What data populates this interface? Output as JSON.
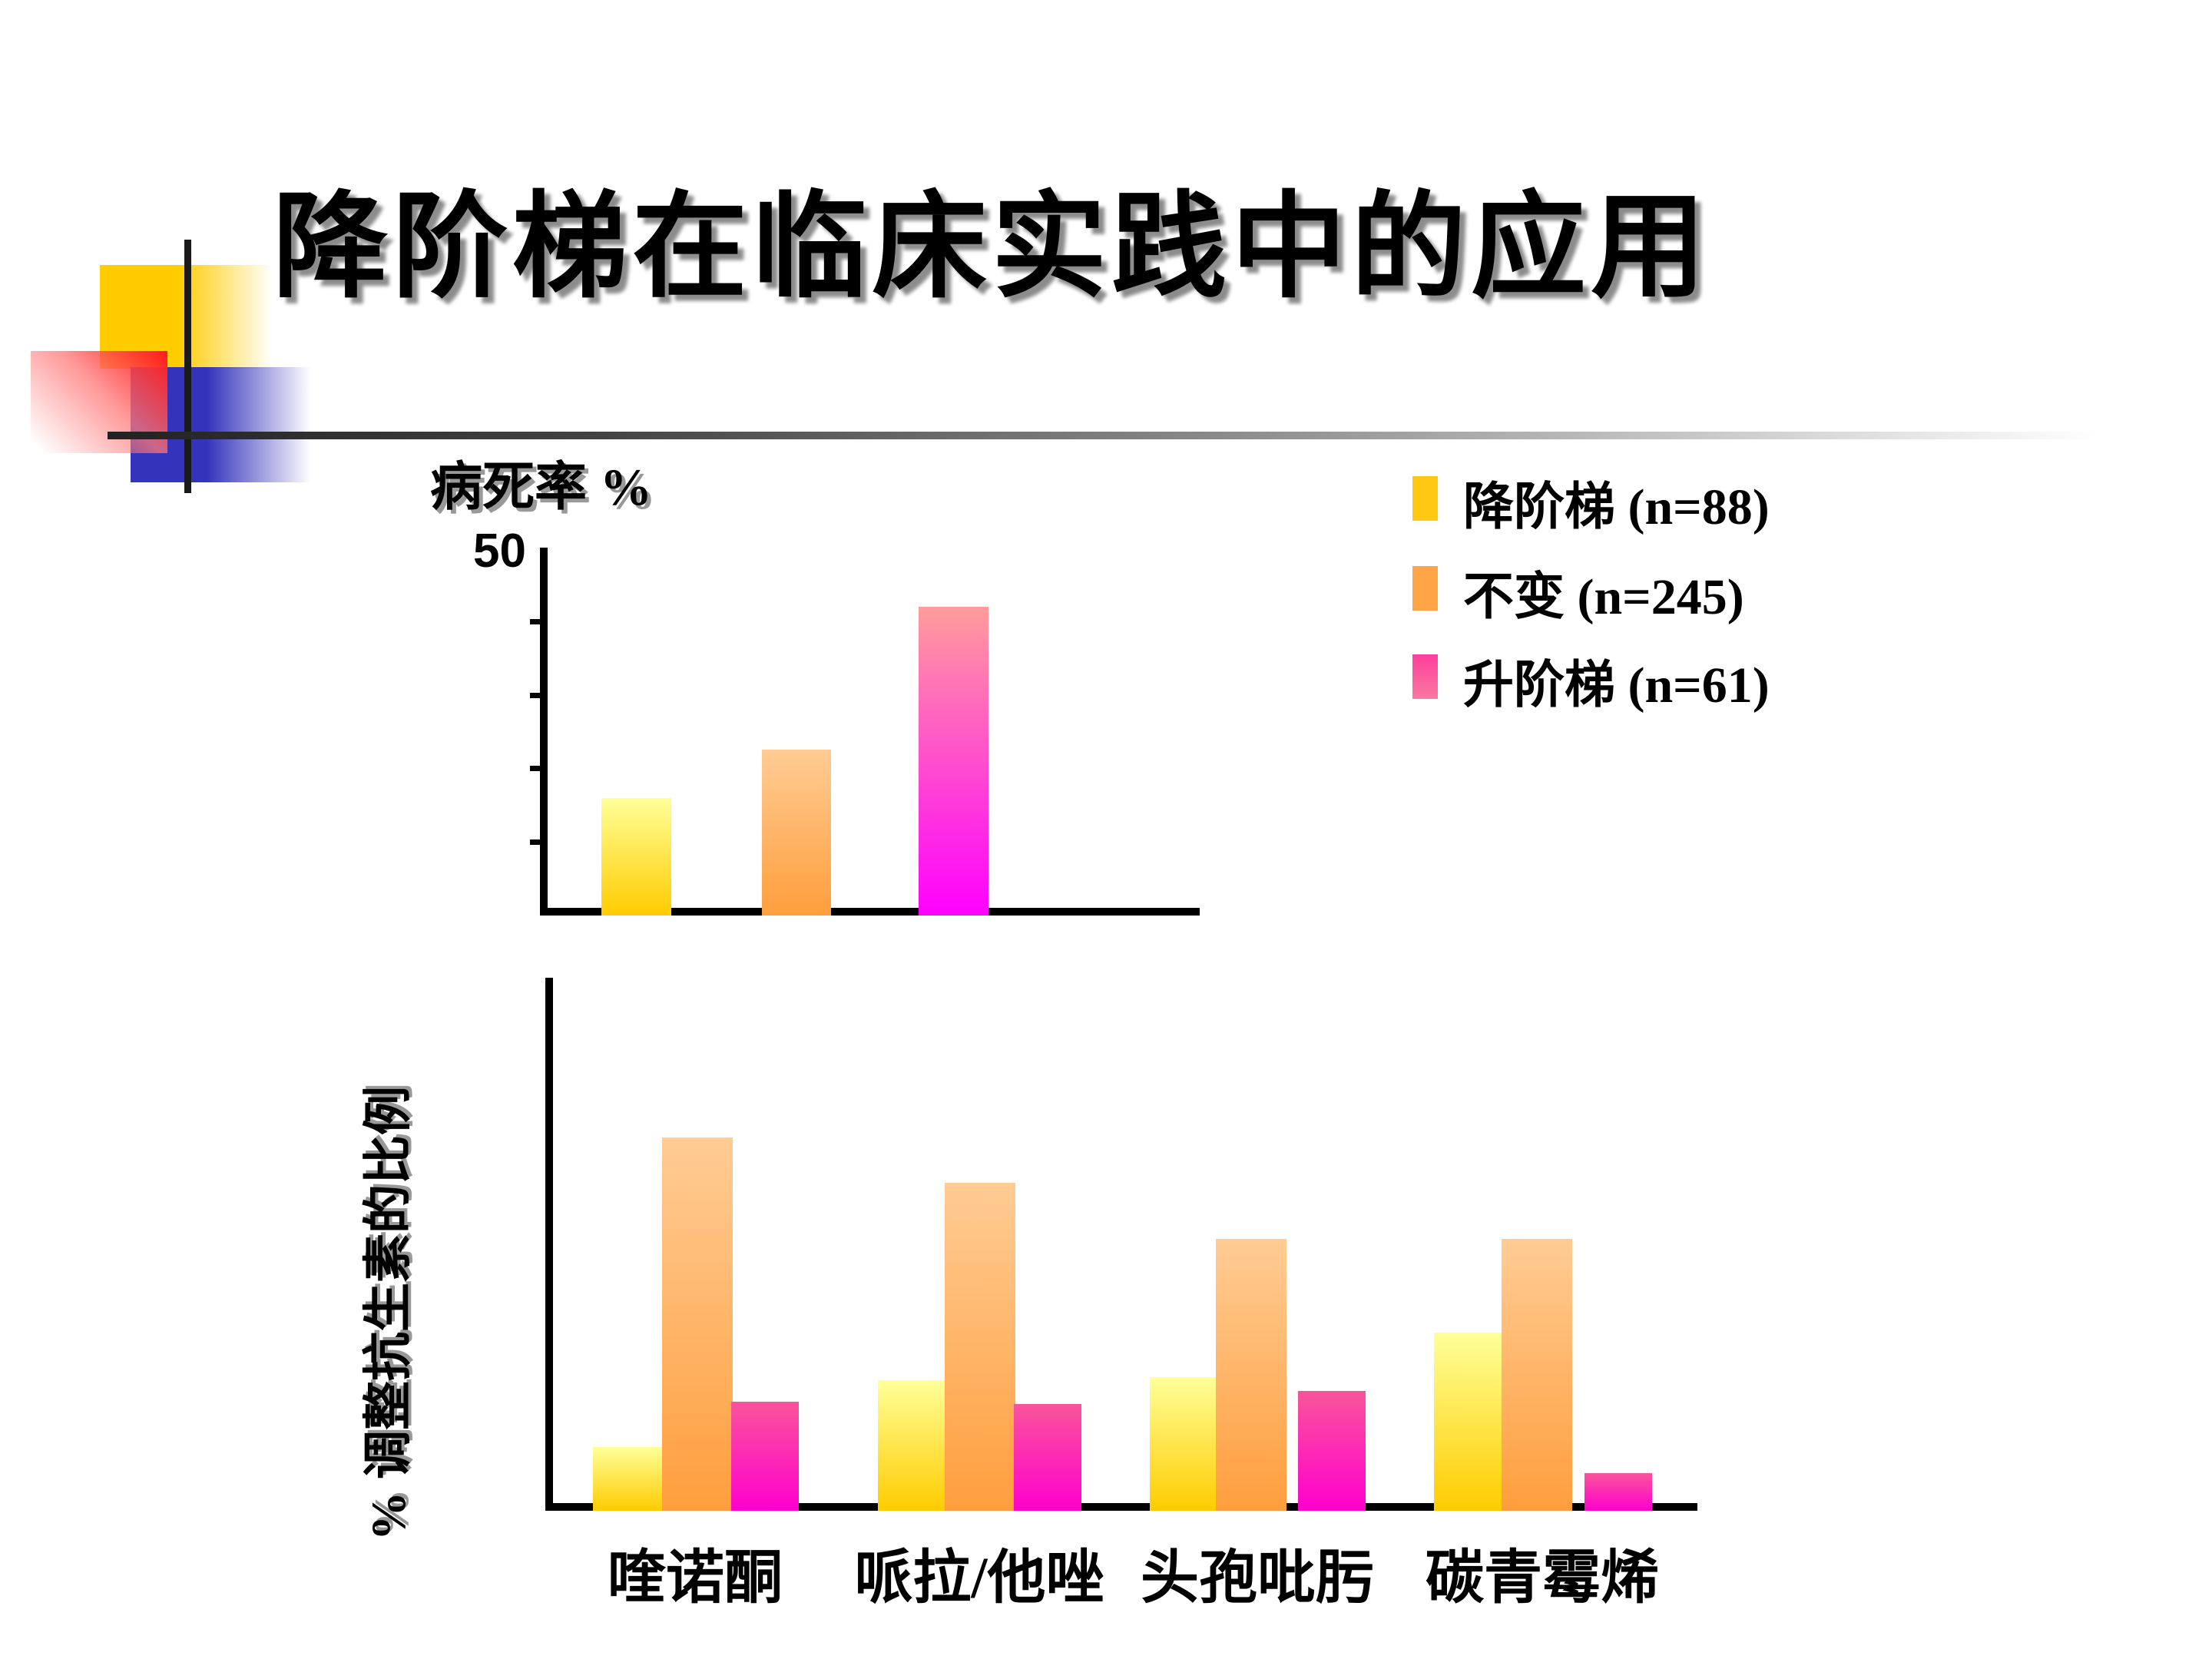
{
  "slide": {
    "title": "降阶梯在临床实践中的应用"
  },
  "top_chart": {
    "axis_label": "病死率 %",
    "y_max_label": "50"
  },
  "bottom_chart": {
    "axis_label": "% 调整抗生素的比例"
  },
  "legend": {
    "position": "top-right",
    "items": [
      {
        "label": "降阶梯 (n=88)",
        "swatch_from": "#FFC812",
        "swatch_to": "#FFC812"
      },
      {
        "label": "不变 (n=245)",
        "swatch_from": "#FFA447",
        "swatch_to": "#FFA447"
      },
      {
        "label": "升阶梯 (n=61)",
        "swatch_from": "#FF3D9E",
        "swatch_to": "#F9799F"
      }
    ]
  },
  "chart_data": [
    {
      "type": "bar",
      "title": "病死率 %",
      "ylabel": "病死率 %",
      "ylim": [
        0,
        50
      ],
      "yticks": [
        10,
        20,
        30,
        40,
        50
      ],
      "ytick_labels_shown": [
        "50"
      ],
      "grid": false,
      "categories": [
        "降阶梯 (n=88)",
        "不变 (n=245)",
        "升阶梯 (n=61)"
      ],
      "values": [
        16,
        22.5,
        42
      ]
    },
    {
      "type": "bar",
      "title": "",
      "ylabel": "% 调整抗生素的比例",
      "ylim": [
        0,
        100
      ],
      "grid": false,
      "categories": [
        "喹诺酮",
        "哌拉/他唑",
        "头孢吡肟",
        "碳青霉烯"
      ],
      "series": [
        {
          "name": "降阶梯 (n=88)",
          "values": [
            12,
            24.5,
            25,
            33.5
          ]
        },
        {
          "name": "不变 (n=245)",
          "values": [
            70,
            61.5,
            51,
            51
          ]
        },
        {
          "name": "升阶梯 (n=61)",
          "values": [
            20.5,
            20,
            22.5,
            7
          ]
        }
      ],
      "legend_position": "top-right"
    }
  ],
  "colors": {
    "gradients": {
      "yellow": [
        "#FFFF99",
        "#FFCC00"
      ],
      "orange": [
        "#FFCC94",
        "#FF9E3D"
      ],
      "pink_top": [
        "#FF9C9C",
        "#FF00FF"
      ],
      "pink_bottom": [
        "#F9549B",
        "#FF00CE"
      ]
    },
    "deco_yellow": "#FFCC00",
    "deco_red": "#FF1A1A",
    "deco_blue": "#3333BB",
    "axis_color": "#000000"
  }
}
